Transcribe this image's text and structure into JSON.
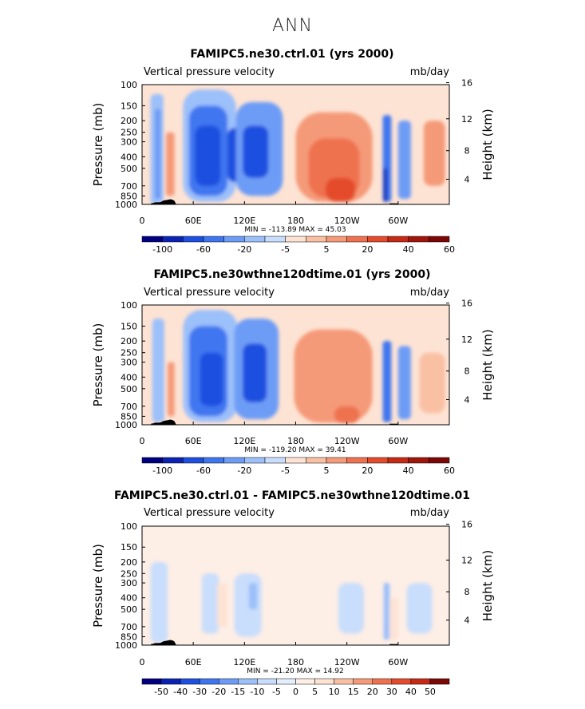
{
  "figure_title": "ANN",
  "chart_data": [
    {
      "type": "heatmap",
      "title": "FAMIPC5.ne30.ctrl.01 (yrs 2000)",
      "subtitle_left": "Vertical pressure velocity",
      "units": "mb/day",
      "ylabel": "Pressure (mb)",
      "y2label": "Height (km)",
      "x_tick_labels": [
        "0",
        "60E",
        "120E",
        "180",
        "120W",
        "60W"
      ],
      "y_tick_labels": [
        "100",
        "150",
        "200",
        "250",
        "300",
        "400",
        "500",
        "700",
        "850",
        "1000"
      ],
      "y2_tick_labels": [
        "16",
        "12",
        "8",
        "4"
      ],
      "stats_label": "MIN = -113.89 MAX = 45.03",
      "min": -113.89,
      "max": 45.03,
      "colorbar_labels": [
        "-100",
        "-60",
        "-20",
        "-5",
        "5",
        "20",
        "40",
        "60"
      ],
      "colorbar_colors": [
        "#00007f",
        "#0a23b2",
        "#1f4fe0",
        "#3f76f0",
        "#6d9cf6",
        "#9cc0fa",
        "#c9defc",
        "#fde3d4",
        "#f9c0a4",
        "#f59a78",
        "#ef7250",
        "#e44b2c",
        "#c62a15",
        "#a0160b",
        "#7a0806"
      ]
    },
    {
      "type": "heatmap",
      "title": "FAMIPC5.ne30wthne120dtime.01 (yrs 2000)",
      "subtitle_left": "Vertical pressure velocity",
      "units": "mb/day",
      "ylabel": "Pressure (mb)",
      "y2label": "Height (km)",
      "x_tick_labels": [
        "0",
        "60E",
        "120E",
        "180",
        "120W",
        "60W"
      ],
      "y_tick_labels": [
        "100",
        "150",
        "200",
        "250",
        "300",
        "400",
        "500",
        "700",
        "850",
        "1000"
      ],
      "y2_tick_labels": [
        "16",
        "12",
        "8",
        "4"
      ],
      "stats_label": "MIN = -119.20 MAX = 39.41",
      "min": -119.2,
      "max": 39.41,
      "colorbar_labels": [
        "-100",
        "-60",
        "-20",
        "-5",
        "5",
        "20",
        "40",
        "60"
      ],
      "colorbar_colors": [
        "#00007f",
        "#0a23b2",
        "#1f4fe0",
        "#3f76f0",
        "#6d9cf6",
        "#9cc0fa",
        "#c9defc",
        "#fde3d4",
        "#f9c0a4",
        "#f59a78",
        "#ef7250",
        "#e44b2c",
        "#c62a15",
        "#a0160b",
        "#7a0806"
      ]
    },
    {
      "type": "heatmap",
      "title": "FAMIPC5.ne30.ctrl.01 - FAMIPC5.ne30wthne120dtime.01",
      "subtitle_left": "Vertical pressure velocity",
      "units": "mb/day",
      "ylabel": "Pressure (mb)",
      "y2label": "Height (km)",
      "x_tick_labels": [
        "0",
        "60E",
        "120E",
        "180",
        "120W",
        "60W"
      ],
      "y_tick_labels": [
        "100",
        "150",
        "200",
        "250",
        "300",
        "400",
        "500",
        "700",
        "850",
        "1000"
      ],
      "y2_tick_labels": [
        "16",
        "12",
        "8",
        "4"
      ],
      "stats_label": "MIN = -21.20 MAX = 14.92",
      "min": -21.2,
      "max": 14.92,
      "colorbar_labels": [
        "-50",
        "-40",
        "-30",
        "-20",
        "-15",
        "-10",
        "-5",
        "0",
        "5",
        "10",
        "15",
        "20",
        "30",
        "40",
        "50"
      ],
      "colorbar_colors": [
        "#00007f",
        "#0a23b2",
        "#1f4fe0",
        "#3f76f0",
        "#6d9cf6",
        "#9cc0fa",
        "#c9defc",
        "#e4eefd",
        "#fdeee6",
        "#fde3d4",
        "#f9c0a4",
        "#f59a78",
        "#ef7250",
        "#e44b2c",
        "#c62a15",
        "#7a0806"
      ]
    }
  ]
}
